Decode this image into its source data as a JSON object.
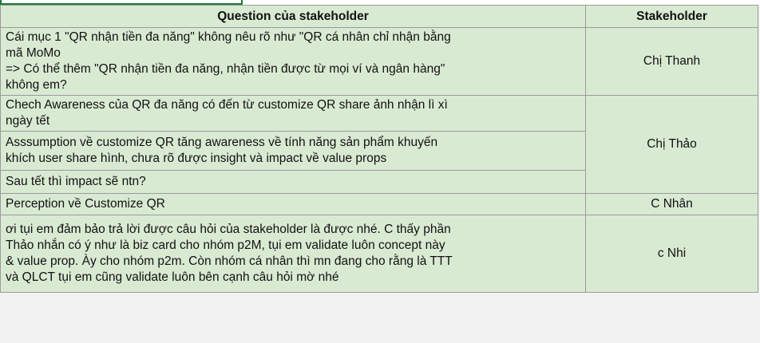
{
  "table": {
    "headers": [
      "Question của stakeholder",
      "Stakeholder"
    ],
    "groups": [
      {
        "stakeholder": "Chị Thanh",
        "questions": [
          [
            "Cái mục 1 \"QR nhận tiền đa năng\" không nêu rõ như \"QR cá nhân chỉ nhận bằng",
            "mã MoMo",
            "=> Có thể thêm \"QR nhận tiền đa năng, nhận tiền được từ mọi ví và ngân hàng\"",
            "không em?"
          ]
        ]
      },
      {
        "stakeholder": "Chị Thảo",
        "questions": [
          [
            "Chech Awareness của QR đa năng có đến từ customize QR share ảnh nhận lì xì",
            "ngày tết"
          ],
          [
            "Asssumption về customize QR tăng awareness về tính năng sản phẩm khuyến",
            "khích user share hình, chưa rõ được insight và impact về value props"
          ],
          [
            "Sau tết thì impact sẽ ntn?"
          ]
        ]
      },
      {
        "stakeholder": "C Nhân",
        "questions": [
          [
            "Perception về Customize QR"
          ]
        ]
      },
      {
        "stakeholder": "c Nhi",
        "questions": [
          [
            "ơi tụi em đảm bảo trả lời được câu hỏi của stakeholder là được nhé. C thấy phần",
            "Thảo nhắn có ý như là biz card cho nhóm p2M, tụi em validate luôn concept này",
            "& value prop. Ày cho nhóm p2m. Còn nhóm cá nhân thì mn đang cho rằng là TTT",
            "và QLCT tụi em cũng validate luôn bên cạnh câu hỏi mờ nhé"
          ]
        ]
      }
    ]
  }
}
